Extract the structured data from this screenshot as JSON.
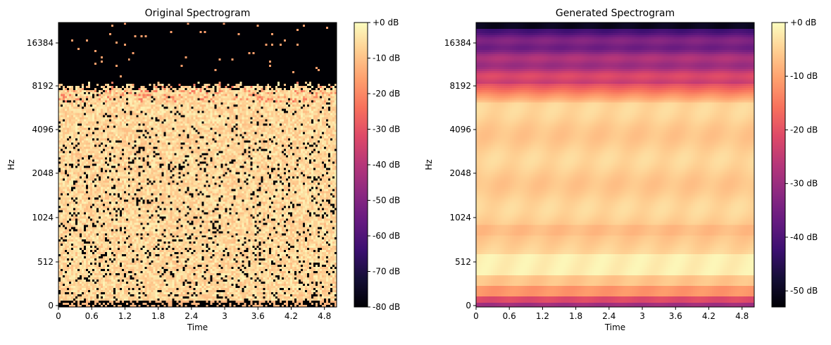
{
  "chart_data": [
    {
      "type": "heatmap",
      "title": "Original Spectrogram",
      "xlabel": "Time",
      "ylabel": "Hz",
      "x_ticks": [
        "0",
        "0.6",
        "1.2",
        "1.8",
        "2.4",
        "3",
        "3.6",
        "4.2",
        "4.8"
      ],
      "x_tick_values": [
        0,
        0.6,
        1.2,
        1.8,
        2.4,
        3,
        3.6,
        4.2,
        4.8
      ],
      "xlim": [
        0,
        5.02
      ],
      "y_scale": "log2 (librosa)",
      "y_ticks": [
        "0",
        "512",
        "1024",
        "2048",
        "4096",
        "8192",
        "16384"
      ],
      "y_tick_values": [
        0,
        512,
        1024,
        2048,
        4096,
        8192,
        16384
      ],
      "colormap": "magma",
      "colorbar_label_ticks": [
        "+0 dB",
        "-10 dB",
        "-20 dB",
        "-30 dB",
        "-40 dB",
        "-50 dB",
        "-60 dB",
        "-70 dB",
        "-80 dB"
      ],
      "colorbar_tick_values": [
        0,
        -10,
        -20,
        -30,
        -40,
        -50,
        -60,
        -70,
        -80
      ],
      "colorbar_range": [
        -80,
        0
      ],
      "description_values": {
        "energy_cutoff_hz": 8192,
        "max_hz": 22050
      }
    },
    {
      "type": "heatmap",
      "title": "Generated Spectrogram",
      "xlabel": "Time",
      "ylabel": "Hz",
      "x_ticks": [
        "0",
        "0.6",
        "1.2",
        "1.8",
        "2.4",
        "3",
        "3.6",
        "4.2",
        "4.8"
      ],
      "x_tick_values": [
        0,
        0.6,
        1.2,
        1.8,
        2.4,
        3,
        3.6,
        4.2,
        4.8
      ],
      "xlim": [
        0,
        5.02
      ],
      "y_scale": "log2 (librosa)",
      "y_ticks": [
        "0",
        "512",
        "1024",
        "2048",
        "4096",
        "8192",
        "16384"
      ],
      "y_tick_values": [
        0,
        512,
        1024,
        2048,
        4096,
        8192,
        16384
      ],
      "colormap": "magma",
      "colorbar_label_ticks": [
        "+0 dB",
        "-10 dB",
        "-20 dB",
        "-30 dB",
        "-40 dB",
        "-50 dB"
      ],
      "colorbar_tick_values": [
        0,
        -10,
        -20,
        -30,
        -40,
        -50
      ],
      "colorbar_range": [
        -53,
        0
      ],
      "description_values": {
        "energy_cutoff_hz": 8192,
        "max_hz": 22050
      }
    }
  ]
}
